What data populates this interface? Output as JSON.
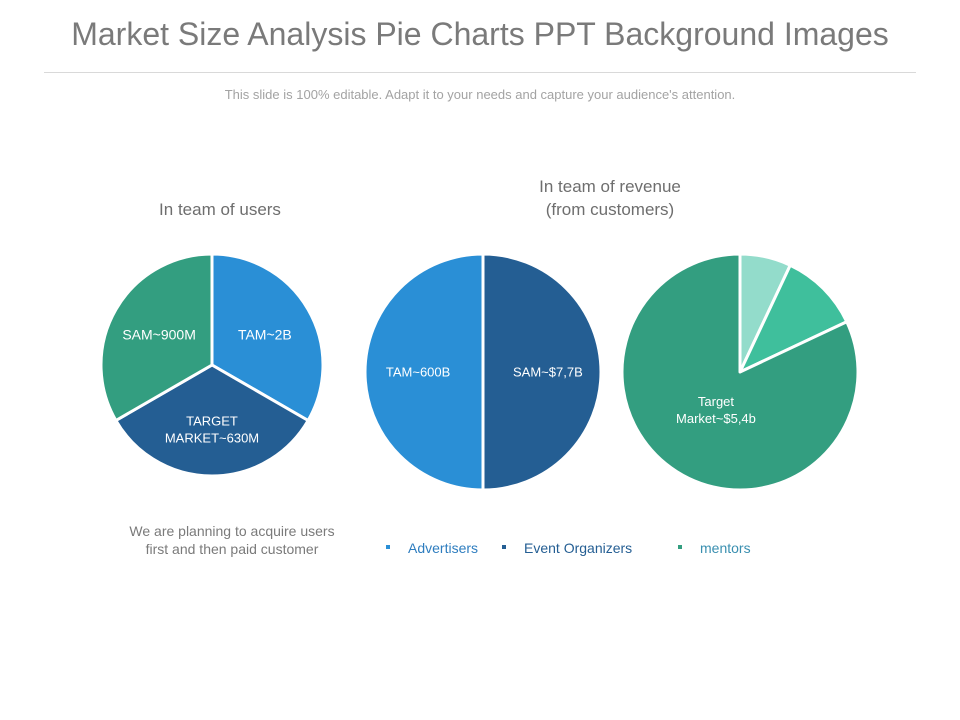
{
  "slide": {
    "title": "Market Size Analysis Pie Charts PPT Background Images",
    "subtitle": "This slide is 100% editable. Adapt it to your needs and capture your audience's attention.",
    "note": "We are planning to acquire users first and then paid customer"
  },
  "headings": {
    "users": "In team of users",
    "revenue_line1": "In team of revenue",
    "revenue_line2": "(from customers)"
  },
  "legend": [
    {
      "label": "Advertisers",
      "color": "#2A8FD6"
    },
    {
      "label": "Event Organizers",
      "color": "#245E93"
    },
    {
      "label": "mentors",
      "color": "#339E80"
    }
  ],
  "chart_data": [
    {
      "type": "pie",
      "title": "In team of users",
      "slices": [
        {
          "label": "TAM~2B",
          "value": 33.3,
          "color": "#2A8FD6"
        },
        {
          "label": "TARGET MARKET~630M",
          "value": 33.3,
          "color": "#245E93"
        },
        {
          "label": "SAM~900M",
          "value": 33.3,
          "color": "#339E80"
        }
      ]
    },
    {
      "type": "pie",
      "title": "In team of revenue (from customers)",
      "slices": [
        {
          "label": "SAM~$7,7B",
          "value": 50,
          "color": "#245E93"
        },
        {
          "label": "TAM~600B",
          "value": 50,
          "color": "#2A8FD6"
        }
      ]
    },
    {
      "type": "pie",
      "slices": [
        {
          "label": "",
          "value": 7,
          "color": "#93DCCB"
        },
        {
          "label": "",
          "value": 11,
          "color": "#3FBF9C"
        },
        {
          "label": "Target Market~$5,4b",
          "value": 82,
          "color": "#339E80"
        }
      ]
    }
  ]
}
